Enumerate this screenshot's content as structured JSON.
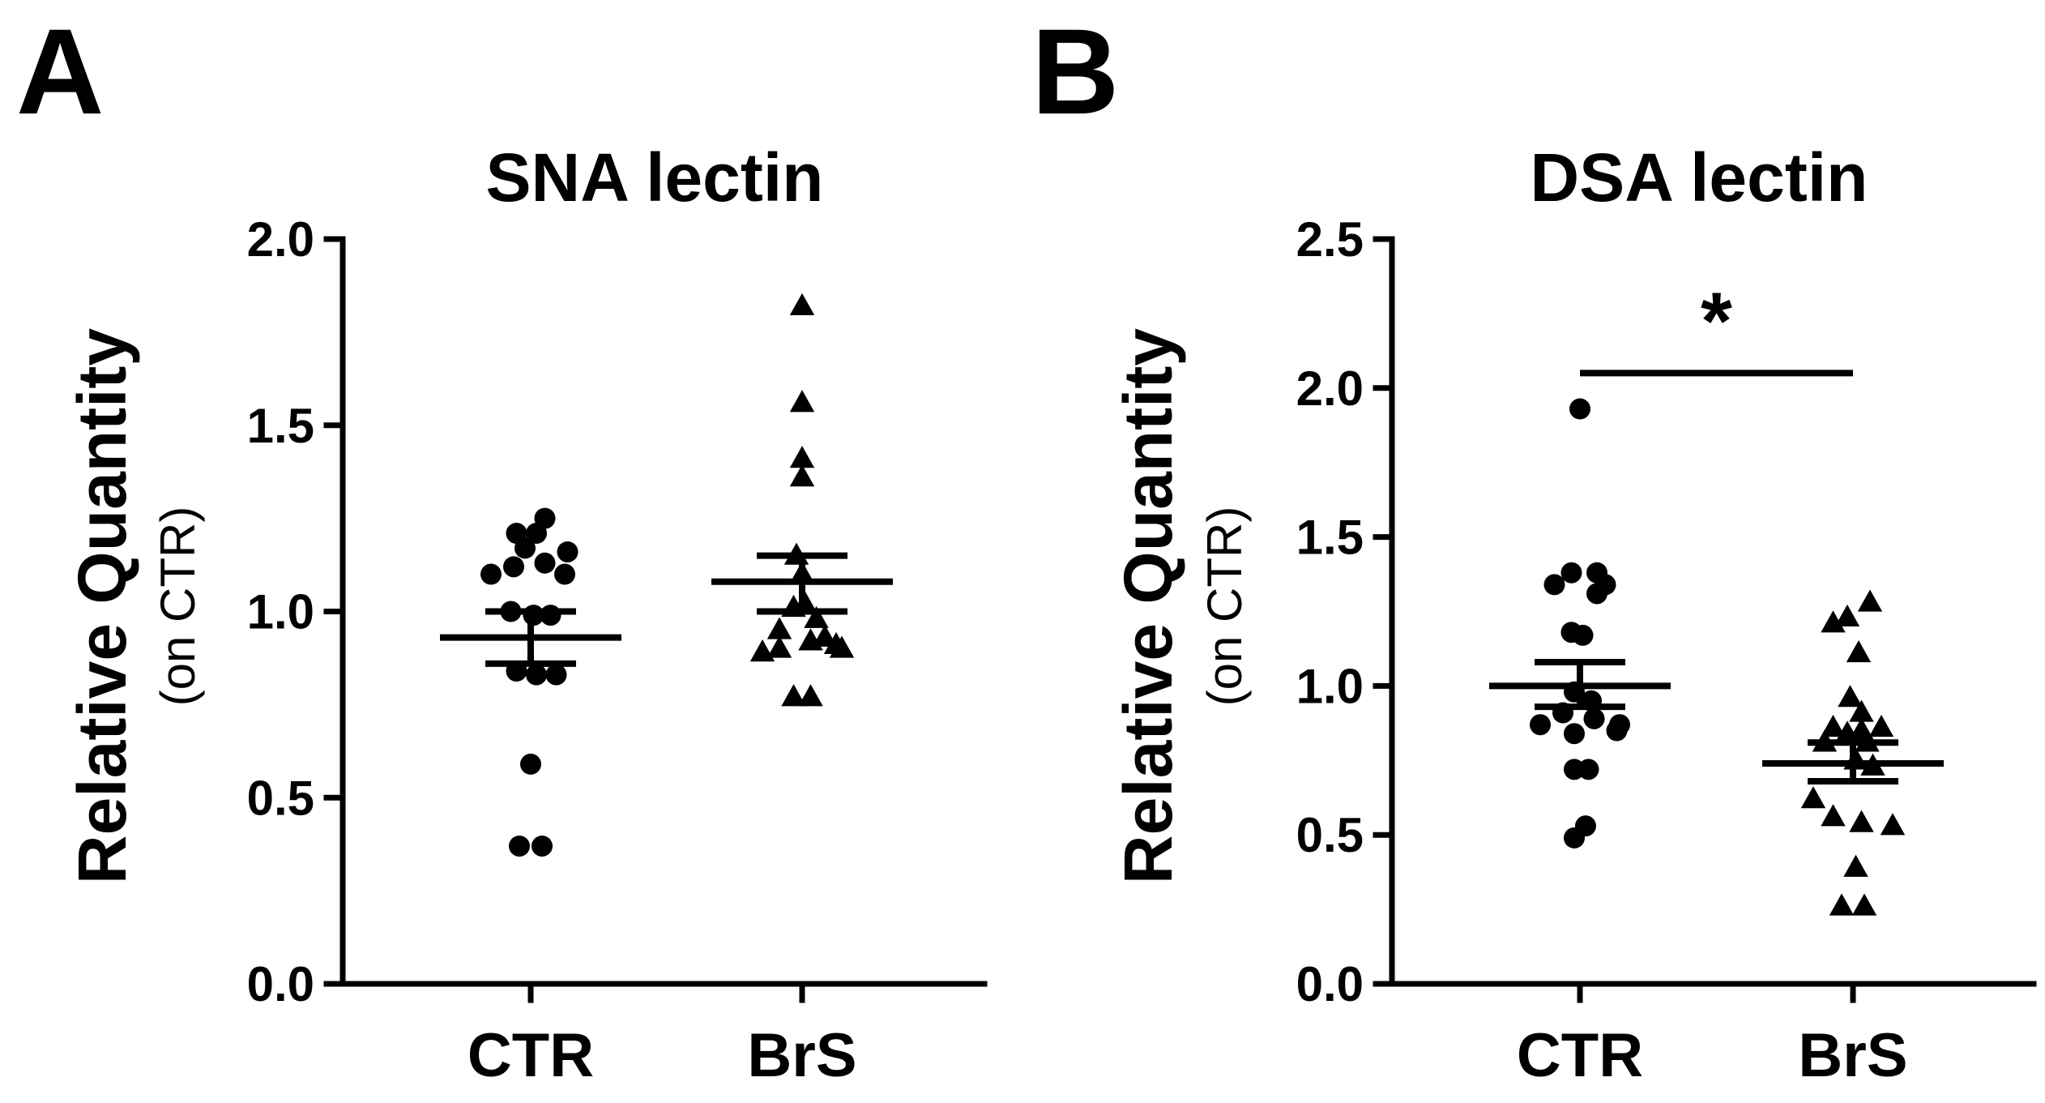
{
  "chart_data": [
    {
      "panel": "A",
      "type": "scatter",
      "title": "SNA lectin",
      "ylabel": "Relative Quantity",
      "ylabel_sub": "(on CTR)",
      "ylim": [
        0,
        2.0
      ],
      "yticks": [
        "0.0",
        "0.5",
        "1.0",
        "1.5",
        "2.0"
      ],
      "categories": [
        "CTR",
        "BrS"
      ],
      "series": [
        {
          "name": "CTR",
          "marker": "circle",
          "values": [
            1.25,
            1.21,
            1.21,
            1.17,
            1.16,
            1.1,
            1.12,
            1.13,
            1.1,
            1.0,
            0.99,
            0.99,
            0.84,
            0.83,
            0.83,
            0.59,
            0.37,
            0.37
          ],
          "offsets": [
            0.5,
            -0.5,
            0.2,
            -0.2,
            1.3,
            -1.4,
            -0.6,
            0.5,
            1.2,
            -0.7,
            0.1,
            0.7,
            -0.5,
            0.2,
            0.9,
            0.0,
            -0.4,
            0.4
          ],
          "mean": 0.93,
          "sem_low": 0.86,
          "sem_high": 1.0
        },
        {
          "name": "BrS",
          "marker": "triangle",
          "values": [
            1.82,
            1.56,
            1.41,
            1.36,
            1.15,
            1.1,
            1.02,
            1.01,
            0.98,
            0.95,
            0.93,
            0.89,
            0.9,
            0.92,
            0.91,
            0.9,
            0.77,
            0.77
          ],
          "offsets": [
            0.0,
            0.0,
            0.0,
            0.0,
            -0.2,
            0.0,
            0.1,
            -0.3,
            0.5,
            -0.8,
            0.8,
            -1.4,
            -0.8,
            0.3,
            1.2,
            1.4,
            -0.3,
            0.3
          ],
          "mean": 1.08,
          "sem_low": 1.0,
          "sem_high": 1.15
        }
      ]
    },
    {
      "panel": "B",
      "type": "scatter",
      "title": "DSA lectin",
      "ylabel": "Relative Quantity",
      "ylabel_sub": "(on CTR)",
      "ylim": [
        0,
        2.5
      ],
      "yticks": [
        "0.0",
        "0.5",
        "1.0",
        "1.5",
        "2.0",
        "2.5"
      ],
      "categories": [
        "CTR",
        "BrS"
      ],
      "significance": {
        "label": "*",
        "y": 2.05
      },
      "series": [
        {
          "name": "CTR",
          "marker": "circle",
          "values": [
            1.93,
            1.38,
            1.38,
            1.34,
            1.34,
            1.31,
            1.18,
            1.17,
            0.98,
            0.95,
            0.87,
            0.91,
            0.87,
            0.89,
            0.84,
            0.85,
            0.72,
            0.72,
            0.53,
            0.49
          ],
          "offsets": [
            0.0,
            -0.3,
            0.6,
            -0.9,
            0.9,
            0.6,
            -0.3,
            0.1,
            -0.2,
            0.4,
            -1.4,
            -0.6,
            1.4,
            0.5,
            -0.2,
            1.3,
            -0.2,
            0.3,
            0.2,
            -0.2
          ],
          "mean": 1.0,
          "sem_low": 0.93,
          "sem_high": 1.08
        },
        {
          "name": "BrS",
          "marker": "triangle",
          "values": [
            1.28,
            1.23,
            1.21,
            1.11,
            0.96,
            0.91,
            0.86,
            0.85,
            0.86,
            0.84,
            0.75,
            0.81,
            0.81,
            0.73,
            0.62,
            0.56,
            0.54,
            0.53,
            0.39,
            0.26,
            0.26
          ],
          "offsets": [
            0.6,
            -0.2,
            -0.7,
            0.2,
            -0.1,
            0.3,
            -0.7,
            0.3,
            1.0,
            -0.2,
            0.1,
            -1.0,
            0.5,
            0.7,
            -1.4,
            -0.7,
            0.3,
            1.4,
            0.1,
            -0.4,
            0.4
          ],
          "mean": 0.74,
          "sem_low": 0.68,
          "sem_high": 0.81
        }
      ]
    }
  ]
}
